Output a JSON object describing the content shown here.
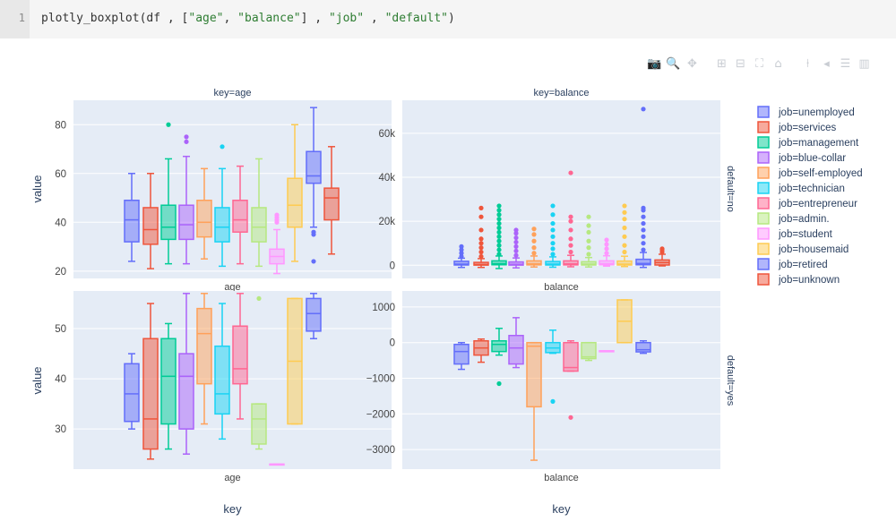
{
  "code_cell": {
    "line_number": "1",
    "parts": [
      {
        "t": "plotly_boxplot(df , [",
        "c": "fn"
      },
      {
        "t": "\"age\"",
        "c": "str"
      },
      {
        "t": ", ",
        "c": "fn"
      },
      {
        "t": "\"balance\"",
        "c": "str"
      },
      {
        "t": "] , ",
        "c": "fn"
      },
      {
        "t": "\"job\"",
        "c": "str"
      },
      {
        "t": " , ",
        "c": "fn"
      },
      {
        "t": "\"default\"",
        "c": "str"
      },
      {
        "t": ")",
        "c": "fn"
      }
    ]
  },
  "modebar": [
    {
      "name": "camera-icon",
      "glyph": "📷"
    },
    {
      "name": "zoom-icon",
      "glyph": "🔍"
    },
    {
      "name": "pan-icon",
      "glyph": "✥"
    },
    {
      "sep": true
    },
    {
      "name": "zoom-in-icon",
      "glyph": "⊞"
    },
    {
      "name": "zoom-out-icon",
      "glyph": "⊟"
    },
    {
      "name": "autoscale-icon",
      "glyph": "⛶"
    },
    {
      "name": "home-icon",
      "glyph": "⌂"
    },
    {
      "sep": true
    },
    {
      "name": "spike-lines-icon",
      "glyph": "⍿"
    },
    {
      "name": "hover-closest-icon",
      "glyph": "◂"
    },
    {
      "name": "hover-compare-icon",
      "glyph": "☰"
    },
    {
      "name": "plotly-logo-icon",
      "glyph": "▥"
    }
  ],
  "chart_data": {
    "type": "box",
    "facet_col_labels": [
      "key=age",
      "key=balance"
    ],
    "facet_row_labels": [
      "default=no",
      "default=yes"
    ],
    "x_axis_title": "key",
    "y_axis_title": "value",
    "categories": [
      "age",
      "balance"
    ],
    "legend_prefix": "job=",
    "series": [
      {
        "name": "job=unemployed",
        "color": "#636efa"
      },
      {
        "name": "job=services",
        "color": "#EF553B"
      },
      {
        "name": "job=management",
        "color": "#00cc96"
      },
      {
        "name": "job=blue-collar",
        "color": "#ab63fa"
      },
      {
        "name": "job=self-employed",
        "color": "#FFA15A"
      },
      {
        "name": "job=technician",
        "color": "#19d3f3"
      },
      {
        "name": "job=entrepreneur",
        "color": "#FF6692"
      },
      {
        "name": "job=admin.",
        "color": "#B6E880"
      },
      {
        "name": "job=student",
        "color": "#FF97FF"
      },
      {
        "name": "job=housemaid",
        "color": "#FECB52"
      },
      {
        "name": "job=retired",
        "color": "#636efa"
      },
      {
        "name": "job=unknown",
        "color": "#EF553B"
      }
    ],
    "panels": [
      {
        "id": "age-no",
        "row": 0,
        "col": 0,
        "xlabel": "age",
        "ylim": [
          17,
          90
        ],
        "ticks": [
          20,
          40,
          60,
          80
        ],
        "tick_labels": [
          "20",
          "40",
          "60",
          "80"
        ],
        "boxes": [
          {
            "q": [
              24,
              32,
              41,
              49,
              60
            ],
            "out": []
          },
          {
            "q": [
              21,
              31,
              37,
              46,
              60
            ],
            "out": []
          },
          {
            "q": [
              23,
              33,
              38,
              47,
              66
            ],
            "out": [
              80
            ]
          },
          {
            "q": [
              23,
              33,
              39,
              47,
              67
            ],
            "out": [
              73,
              75
            ]
          },
          {
            "q": [
              25,
              34,
              40,
              49,
              62
            ],
            "out": []
          },
          {
            "q": [
              22,
              32,
              38,
              46,
              62
            ],
            "out": [
              71
            ]
          },
          {
            "q": [
              23,
              36,
              41,
              49,
              63
            ],
            "out": []
          },
          {
            "q": [
              22,
              32,
              38,
              46,
              66
            ],
            "out": []
          },
          {
            "q": [
              19,
              23,
              26,
              29,
              37
            ],
            "out": [
              40,
              41,
              42,
              43
            ]
          },
          {
            "q": [
              24,
              38,
              47,
              58,
              80
            ],
            "out": []
          },
          {
            "q": [
              38,
              56,
              59,
              69,
              87
            ],
            "out": [
              24,
              35,
              36
            ]
          },
          {
            "q": [
              27,
              41,
              50,
              54,
              71
            ],
            "out": []
          }
        ]
      },
      {
        "id": "balance-no",
        "row": 0,
        "col": 1,
        "xlabel": "balance",
        "ylim": [
          -6000,
          75000
        ],
        "ticks": [
          0,
          20000,
          40000,
          60000
        ],
        "tick_labels": [
          "0",
          "20k",
          "40k",
          "60k"
        ],
        "boxes": [
          {
            "q": [
              -1000,
              100,
              500,
              1800,
              3200
            ],
            "out": [
              4000,
              5500,
              7000,
              8500
            ]
          },
          {
            "q": [
              -1000,
              50,
              350,
              1300,
              3000
            ],
            "out": [
              4000,
              6000,
              8000,
              10000,
              12000,
              16000,
              22000,
              26000
            ]
          },
          {
            "q": [
              -1500,
              200,
              700,
              2000,
              4200
            ],
            "out": [
              5000,
              7000,
              9000,
              11000,
              13000,
              15000,
              17000,
              19000,
              21000,
              23000,
              25000,
              27000
            ]
          },
          {
            "q": [
              -1200,
              50,
              400,
              1500,
              3300
            ],
            "out": [
              4500,
              6500,
              8500,
              10500,
              12500,
              14500,
              16000
            ]
          },
          {
            "q": [
              -800,
              150,
              600,
              2000,
              4200
            ],
            "out": [
              5500,
              8000,
              11000,
              14000,
              16500
            ]
          },
          {
            "q": [
              -900,
              100,
              500,
              1700,
              3800
            ],
            "out": [
              5000,
              7500,
              10000,
              13000,
              16000,
              19000,
              23000,
              27000
            ]
          },
          {
            "q": [
              -700,
              150,
              600,
              2000,
              4500
            ],
            "out": [
              6000,
              9000,
              12000,
              16000,
              20000,
              22000,
              42000
            ]
          },
          {
            "q": [
              -800,
              100,
              500,
              1600,
              3500
            ],
            "out": [
              5000,
              8000,
              11000,
              15000,
              18000,
              22000
            ]
          },
          {
            "q": [
              -400,
              200,
              700,
              2000,
              4300
            ],
            "out": [
              5500,
              7500,
              9500,
              11500
            ]
          },
          {
            "q": [
              -600,
              100,
              500,
              1900,
              4100
            ],
            "out": [
              6000,
              9000,
              13000,
              17000,
              21000,
              24000,
              27000
            ]
          },
          {
            "q": [
              -1000,
              200,
              800,
              2700,
              5800
            ],
            "out": [
              7000,
              10000,
              13000,
              16000,
              19000,
              22000,
              25000,
              26000,
              71000
            ]
          },
          {
            "q": [
              -300,
              100,
              1200,
              2400,
              5000
            ],
            "out": [
              6000,
              7000,
              7500
            ]
          }
        ]
      },
      {
        "id": "age-yes",
        "row": 1,
        "col": 0,
        "xlabel": "age",
        "ylim": [
          22,
          57.5
        ],
        "ticks": [
          30,
          40,
          50
        ],
        "tick_labels": [
          "30",
          "40",
          "50"
        ],
        "boxes": [
          {
            "q": [
              30,
              31.5,
              37,
              43,
              45
            ],
            "out": []
          },
          {
            "q": [
              24,
              26,
              32,
              48,
              55
            ],
            "out": []
          },
          {
            "q": [
              26,
              31,
              40.5,
              48,
              51
            ],
            "out": []
          },
          {
            "q": [
              25,
              30,
              40.5,
              45,
              57
            ],
            "out": []
          },
          {
            "q": [
              31,
              39,
              49,
              54,
              57
            ],
            "out": []
          },
          {
            "q": [
              28,
              33,
              37,
              46.5,
              55
            ],
            "out": []
          },
          {
            "q": [
              32,
              39,
              42,
              50.5,
              57
            ],
            "out": []
          },
          {
            "q": [
              26,
              27,
              32,
              35,
              35
            ],
            "out": [
              56
            ]
          },
          {
            "q": [
              23,
              23,
              23,
              23,
              23
            ],
            "out": []
          },
          {
            "q": [
              31,
              31,
              43.5,
              56,
              56
            ],
            "out": []
          },
          {
            "q": [
              48,
              49.5,
              53,
              56,
              57
            ],
            "out": []
          },
          null
        ]
      },
      {
        "id": "balance-yes",
        "row": 1,
        "col": 1,
        "xlabel": "balance",
        "ylim": [
          -3550,
          1450
        ],
        "ticks": [
          -3000,
          -2000,
          -1000,
          0,
          1000
        ],
        "tick_labels": [
          "−3000",
          "−2000",
          "−1000",
          "0",
          "1000"
        ],
        "boxes": [
          {
            "q": [
              -750,
              -600,
              -250,
              -50,
              0
            ],
            "out": []
          },
          {
            "q": [
              -550,
              -350,
              -150,
              50,
              100
            ],
            "out": []
          },
          {
            "q": [
              -350,
              -250,
              -50,
              50,
              400
            ],
            "out": [
              -1150
            ]
          },
          {
            "q": [
              -700,
              -600,
              -150,
              200,
              700
            ],
            "out": []
          },
          {
            "q": [
              -3300,
              -1800,
              -100,
              0,
              0
            ],
            "out": []
          },
          {
            "q": [
              -300,
              -280,
              -150,
              0,
              350
            ],
            "out": [
              -1650
            ]
          },
          {
            "q": [
              -800,
              -800,
              -700,
              0,
              50
            ],
            "out": [
              -2100
            ]
          },
          {
            "q": [
              -500,
              -450,
              -400,
              0,
              0
            ],
            "out": []
          },
          {
            "q": [
              -230,
              -230,
              -230,
              -230,
              -230
            ],
            "out": []
          },
          {
            "q": [
              0,
              0,
              600,
              1200,
              1200
            ],
            "out": []
          },
          {
            "q": [
              -300,
              -260,
              -200,
              0,
              50
            ],
            "out": []
          },
          null
        ]
      }
    ]
  }
}
